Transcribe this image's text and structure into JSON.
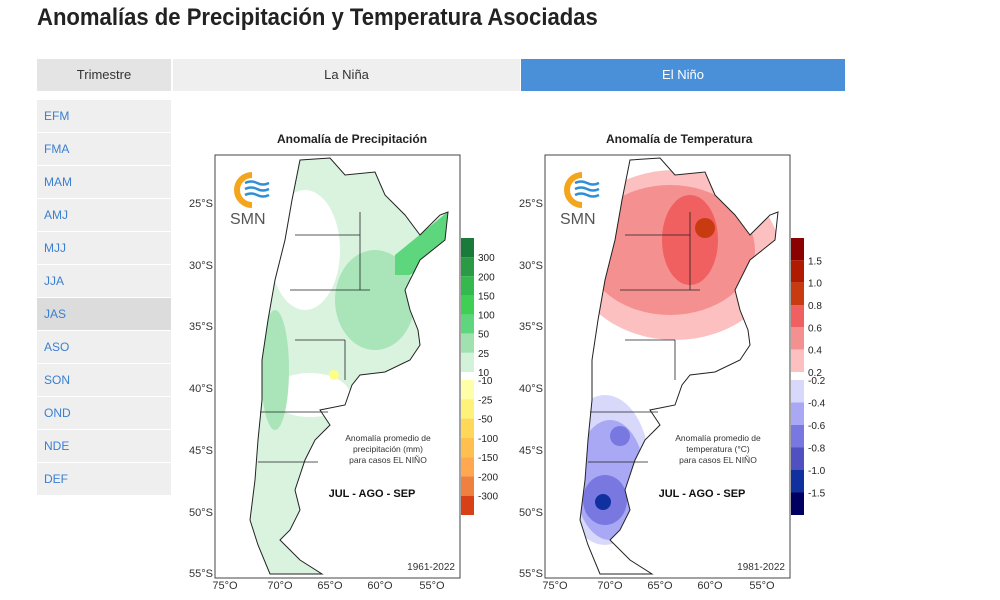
{
  "title": "Anomalías de Precipitación y Temperatura Asociadas",
  "tabs": {
    "trimestre": "Trimestre",
    "la_nina": "La Niña",
    "el_nino": "El Niño"
  },
  "accent": "#4a90d9",
  "sidebar": [
    "EFM",
    "FMA",
    "MAM",
    "AMJ",
    "MJJ",
    "JJA",
    "JAS",
    "ASO",
    "SON",
    "OND",
    "NDE",
    "DEF"
  ],
  "sidebar_active": "JAS",
  "logo_text": "SMN",
  "lat_labels": [
    "25°S",
    "30°S",
    "35°S",
    "40°S",
    "45°S",
    "50°S",
    "55°S"
  ],
  "lon_labels": [
    "75°O",
    "70°O",
    "65°O",
    "60°O",
    "55°O"
  ],
  "maps": [
    {
      "title": "Anomalía de Precipitación",
      "note": [
        "Anomalía promedio de",
        "precipitación (mm)",
        "para casos EL NIÑO"
      ],
      "season": "JUL - AGO - SEP",
      "period": "1961-2022",
      "pos_labels": [
        "300",
        "200",
        "150",
        "100",
        "50",
        "25",
        "10"
      ],
      "pos_colors": [
        "#1a7a3a",
        "#2a9a44",
        "#35b84e",
        "#3fcf55",
        "#5ed67e",
        "#9fe2b0",
        "#d2f2da"
      ],
      "neg_labels": [
        "-10",
        "-25",
        "-50",
        "-100",
        "-150",
        "-200",
        "-300"
      ],
      "neg_colors": [
        "#ffffa8",
        "#fff27a",
        "#ffd85a",
        "#ffc050",
        "#ffa850",
        "#f08040",
        "#d84018"
      ]
    },
    {
      "title": "Anomalía de Temperatura",
      "note": [
        "Anomalía promedio de",
        "temperatura (°C)",
        "para casos EL NIÑO"
      ],
      "season": "JUL - AGO - SEP",
      "period": "1981-2022",
      "pos_labels": [
        "1.5",
        "1.0",
        "0.8",
        "0.6",
        "0.4",
        "0.2"
      ],
      "pos_colors": [
        "#8b0000",
        "#b01a00",
        "#c83a10",
        "#f06060",
        "#f59090",
        "#fcc0c0"
      ],
      "neg_labels": [
        "-0.2",
        "-0.4",
        "-0.6",
        "-0.8",
        "-1.0",
        "-1.5"
      ],
      "neg_colors": [
        "#d8d8fa",
        "#a8a8f5",
        "#7878e0",
        "#5050c0",
        "#1030a0",
        "#000060"
      ]
    }
  ]
}
